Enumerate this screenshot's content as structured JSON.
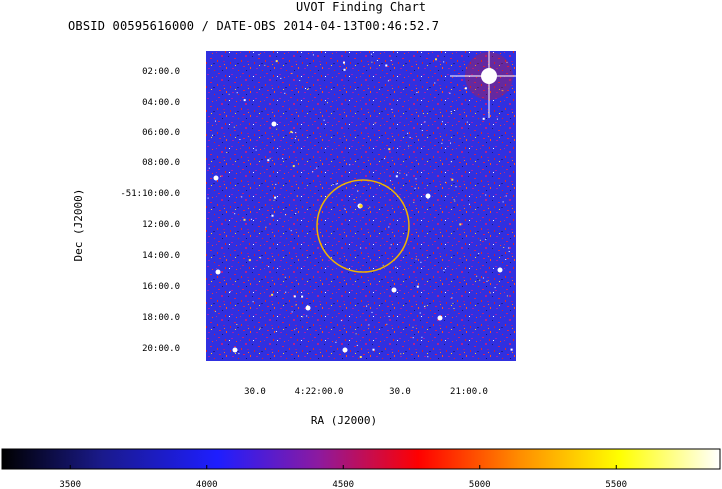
{
  "header": {
    "title": "UVOT Finding Chart",
    "subtitle": "OBSID 00595616000 / DATE-OBS 2014-04-13T00:46:52.7"
  },
  "chart_data": {
    "type": "heatmap",
    "title": "UVOT Finding Chart",
    "subtitle": "OBSID 00595616000 / DATE-OBS 2014-04-13T00:46:52.7",
    "xlabel": "RA (J2000)",
    "ylabel": "Dec (J2000)",
    "x_ticks": [
      "30.0",
      "4:22:00.0",
      "30.0",
      "21:00.0"
    ],
    "y_ticks": [
      "02:00.0",
      "04:00.0",
      "06:00.0",
      "08:00.0",
      "-51:10:00.0",
      "12:00.0",
      "14:00.0",
      "16:00.0",
      "18:00.0",
      "20:00.0"
    ],
    "colorbar": {
      "ticks": [
        3500,
        4000,
        4500,
        5000,
        5500
      ],
      "range": [
        3250,
        5880
      ],
      "colormap": [
        "#000000",
        "#1a1a8c",
        "#1e1eff",
        "#8c1aa0",
        "#ff0000",
        "#ff8c00",
        "#ffff00",
        "#ffffff"
      ]
    },
    "marker": {
      "type": "circle",
      "color": "#f0b400"
    },
    "grid": false
  }
}
